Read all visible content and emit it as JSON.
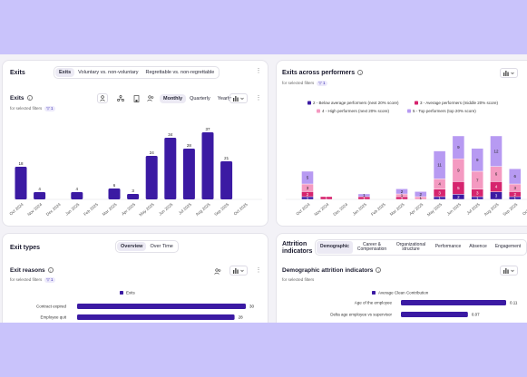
{
  "colors": {
    "primary": "#3b1aa3",
    "pink": "#f49ac1",
    "magenta": "#d6246e",
    "lavender": "#b79af2",
    "background": "#c9c3fb"
  },
  "exits_card": {
    "title": "Exits",
    "segment": [
      "Exits",
      "Voluntary vs. non-voluntary",
      "Regrettable vs. non-regrettable"
    ],
    "subtitle": "Exits",
    "filter_text": "for selected filters",
    "filter_count": "1",
    "periods": [
      "Monthly",
      "Quarterly",
      "Yearly"
    ],
    "icons": [
      "org-chart-icon",
      "hierarchy-icon",
      "building-icon",
      "people-icon",
      "bar-chart-icon",
      "more-icon"
    ]
  },
  "performers_card": {
    "title": "Exits across performers",
    "filter_text": "for selected filters",
    "filter_count": "1",
    "legend": [
      {
        "label": "2 - Below average performers (next 20% score)",
        "color": "#3b1aa3"
      },
      {
        "label": "3 - Average performers (middle 20% score)",
        "color": "#d6246e"
      },
      {
        "label": "4 - High performers (next 20% score)",
        "color": "#f49ac1"
      },
      {
        "label": "5 - Top performers (top 20% score)",
        "color": "#b79af2"
      }
    ]
  },
  "exit_types_card": {
    "title": "Exit types",
    "tabs": [
      "Overview",
      "Over Time"
    ],
    "subtitle": "Exit reasons",
    "filter_text": "for selected filters",
    "filter_count": "1"
  },
  "attrition_card": {
    "title": "Attrition indicators",
    "tabs": [
      "Demographic",
      "Career & Compensation",
      "Organizational structure",
      "Performance",
      "Absence",
      "Engagement"
    ],
    "subtitle": "Demographic attrition indicators",
    "filter_text": "for selected filters"
  },
  "chart_data": [
    {
      "type": "bar",
      "title": "Exits",
      "categories": [
        "Oct 2024",
        "Nov 2024",
        "Dec 2024",
        "Jan 2025",
        "Feb 2025",
        "Mar 2025",
        "Apr 2025",
        "May 2025",
        "Jun 2025",
        "Jul 2025",
        "Aug 2025",
        "Sep 2025",
        "Oct 2025"
      ],
      "values": [
        18,
        4,
        null,
        4,
        null,
        6,
        3,
        24,
        34,
        28,
        37,
        21,
        null
      ],
      "ylim": [
        0,
        40
      ]
    },
    {
      "type": "bar",
      "title": "Exits across performers",
      "stacked": true,
      "categories": [
        "Oct 2024",
        "Nov 2024",
        "Dec 2024",
        "Jan 2025",
        "Feb 2025",
        "Mar 2025",
        "Apr 2025",
        "May 2025",
        "Jun 2025",
        "Jul 2025",
        "Aug 2025",
        "Sep 2025",
        "Oct 2025"
      ],
      "series": [
        {
          "name": "2 - Below average performers (next 20% score)",
          "values": [
            1,
            null,
            null,
            null,
            null,
            null,
            null,
            1,
            2,
            1,
            3,
            1,
            null
          ]
        },
        {
          "name": "3 - Average performers (middle 20% score)",
          "values": [
            2,
            1,
            null,
            1,
            null,
            1,
            null,
            3,
            5,
            3,
            4,
            2,
            null
          ]
        },
        {
          "name": "4 - High performers (next 20% score)",
          "values": [
            3,
            null,
            null,
            null,
            null,
            1,
            1,
            4,
            9,
            7,
            6,
            3,
            null
          ]
        },
        {
          "name": "5 - Top performers (top 20% score)",
          "values": [
            5,
            null,
            null,
            1,
            null,
            2,
            2,
            11,
            9,
            9,
            12,
            6,
            null
          ]
        }
      ],
      "ylim": [
        0,
        30
      ]
    },
    {
      "type": "bar",
      "orientation": "horizontal",
      "title": "Exit reasons",
      "legend": [
        "Exits"
      ],
      "categories": [
        "Contract expired",
        "Employee quit"
      ],
      "values": [
        30,
        28
      ]
    },
    {
      "type": "bar",
      "orientation": "horizontal",
      "title": "Demographic attrition indicators",
      "legend": [
        "Average Clean Contribution"
      ],
      "categories": [
        "Age of the employee",
        "Delta age employee vs supervisor"
      ],
      "values": [
        0.11,
        0.07
      ]
    }
  ]
}
